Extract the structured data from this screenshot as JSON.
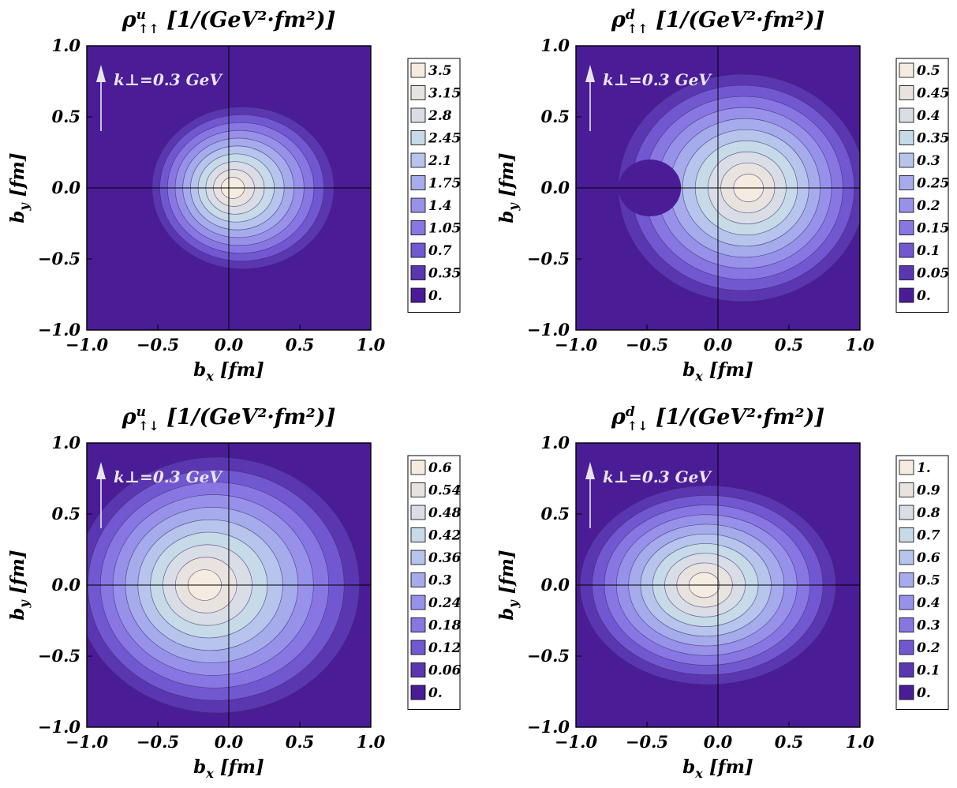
{
  "chart_data": [
    {
      "type": "heatmap",
      "title_symbol": "ρ",
      "title_sup": "u",
      "title_sub": "↑↑",
      "title_units": "[1/(GeV²·fm²)]",
      "xlabel_main": "b",
      "xlabel_sub": "x",
      "xlabel_unit": "[fm]",
      "ylabel_main": "b",
      "ylabel_sub": "y",
      "ylabel_unit": "[fm]",
      "annotation": "k⊥=0.3 GeV",
      "xlim": [
        -1.0,
        1.0
      ],
      "ylim": [
        -1.0,
        1.0
      ],
      "x_ticks": [
        "−1.0",
        "−0.5",
        "0.0",
        "0.5",
        "1.0"
      ],
      "y_ticks": [
        "1.0",
        "0.5",
        "0.0",
        "−0.5",
        "−1.0"
      ],
      "legend": [
        "3.5",
        "3.15",
        "2.8",
        "2.45",
        "2.1",
        "1.75",
        "1.4",
        "1.05",
        "0.7",
        "0.35",
        "0."
      ],
      "peak": {
        "x": 0.02,
        "y": 0.0,
        "value": 3.5
      }
    },
    {
      "type": "heatmap",
      "title_symbol": "ρ",
      "title_sup": "d",
      "title_sub": "↑↑",
      "title_units": "[1/(GeV²·fm²)]",
      "xlabel_main": "b",
      "xlabel_sub": "x",
      "xlabel_unit": "[fm]",
      "ylabel_main": "b",
      "ylabel_sub": "y",
      "ylabel_unit": "[fm]",
      "annotation": "k⊥=0.3 GeV",
      "xlim": [
        -1.0,
        1.0
      ],
      "ylim": [
        -1.0,
        1.0
      ],
      "x_ticks": [
        "−1.0",
        "−0.5",
        "0.0",
        "0.5",
        "1.0"
      ],
      "y_ticks": [
        "1.0",
        "0.5",
        "0.0",
        "−0.5",
        "−1.0"
      ],
      "legend": [
        "0.5",
        "0.45",
        "0.4",
        "0.35",
        "0.3",
        "0.25",
        "0.2",
        "0.15",
        "0.1",
        "0.05",
        "0."
      ],
      "peak": {
        "x": 0.22,
        "y": 0.0,
        "value": 0.5
      }
    },
    {
      "type": "heatmap",
      "title_symbol": "ρ",
      "title_sup": "u",
      "title_sub": "↑↓",
      "title_units": "[1/(GeV²·fm²)]",
      "xlabel_main": "b",
      "xlabel_sub": "x",
      "xlabel_unit": "[fm]",
      "ylabel_main": "b",
      "ylabel_sub": "y",
      "ylabel_unit": "[fm]",
      "annotation": "k⊥=0.3 GeV",
      "xlim": [
        -1.0,
        1.0
      ],
      "ylim": [
        -1.0,
        1.0
      ],
      "x_ticks": [
        "−1.0",
        "−0.5",
        "0.0",
        "0.5",
        "1.0"
      ],
      "y_ticks": [
        "1.0",
        "0.5",
        "0.0",
        "−0.5",
        "−1.0"
      ],
      "legend": [
        "0.6",
        "0.54",
        "0.48",
        "0.42",
        "0.36",
        "0.3",
        "0.24",
        "0.18",
        "0.12",
        "0.06",
        "0."
      ],
      "peak": {
        "x": -0.18,
        "y": 0.0,
        "value": 0.6
      }
    },
    {
      "type": "heatmap",
      "title_symbol": "ρ",
      "title_sup": "d",
      "title_sub": "↑↓",
      "title_units": "[1/(GeV²·fm²)]",
      "xlabel_main": "b",
      "xlabel_sub": "x",
      "xlabel_unit": "[fm]",
      "ylabel_main": "b",
      "ylabel_sub": "y",
      "ylabel_unit": "[fm]",
      "annotation": "k⊥=0.3 GeV",
      "xlim": [
        -1.0,
        1.0
      ],
      "ylim": [
        -1.0,
        1.0
      ],
      "x_ticks": [
        "−1.0",
        "−0.5",
        "0.0",
        "0.5",
        "1.0"
      ],
      "y_ticks": [
        "1.0",
        "0.5",
        "0.0",
        "−0.5",
        "−1.0"
      ],
      "legend": [
        "1.",
        "0.9",
        "0.8",
        "0.7",
        "0.6",
        "0.5",
        "0.4",
        "0.3",
        "0.2",
        "0.1",
        "0."
      ],
      "peak": {
        "x": -0.1,
        "y": 0.0,
        "value": 1.0
      }
    }
  ],
  "colors": {
    "background_level": "#4a1d96",
    "levels": [
      "#f5ecdf",
      "#e8e3df",
      "#d9dde6",
      "#c6dae8",
      "#b7c4ec",
      "#a5abeb",
      "#9891ea",
      "#8877e2",
      "#7258d0",
      "#5a37b0",
      "#4a1d96"
    ],
    "contour_line": "#3a2a6a",
    "axis": "#000000",
    "annotation": "#e8e4ee"
  }
}
